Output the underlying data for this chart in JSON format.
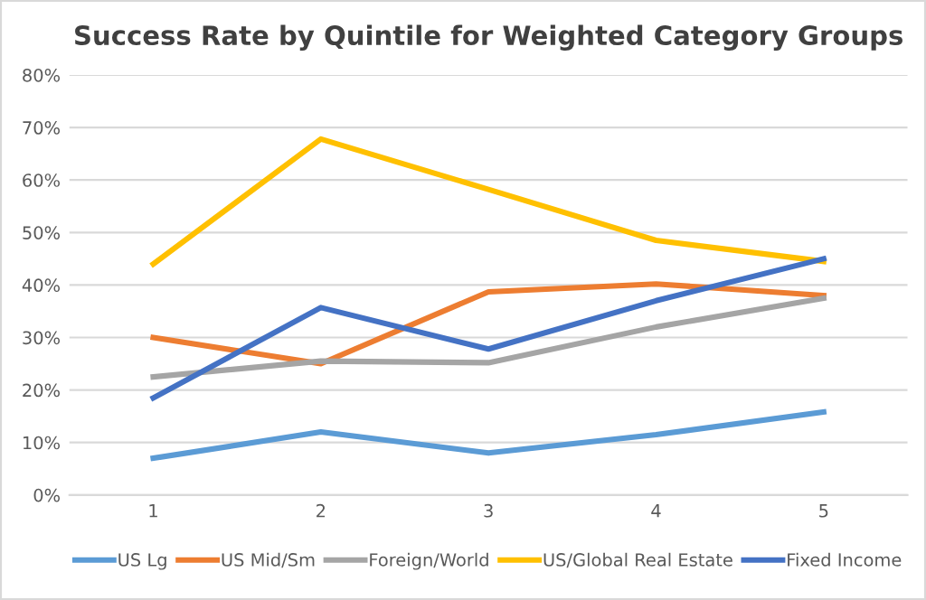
{
  "chart_data": {
    "type": "line",
    "title": "Success Rate by Quintile for Weighted Category Groups",
    "categories": [
      "1",
      "2",
      "3",
      "4",
      "5"
    ],
    "series": [
      {
        "name": "US Lg",
        "color": "#5b9bd5",
        "values": [
          7,
          12,
          8,
          11.5,
          15.8
        ]
      },
      {
        "name": "US Mid/Sm",
        "color": "#ed7d31",
        "values": [
          30,
          25,
          38.7,
          40.2,
          38
        ]
      },
      {
        "name": "Foreign/World",
        "color": "#a5a5a5",
        "values": [
          22.5,
          25.5,
          25.2,
          32,
          37.5
        ]
      },
      {
        "name": "US/Global Real Estate",
        "color": "#ffc000",
        "values": [
          44,
          67.8,
          58.2,
          48.5,
          44.5
        ]
      },
      {
        "name": "Fixed Income",
        "color": "#4472c4",
        "values": [
          18.5,
          35.7,
          27.8,
          37,
          45
        ]
      }
    ],
    "ylim": [
      0,
      80
    ],
    "yticks": [
      {
        "value": 0,
        "label": "0%"
      },
      {
        "value": 10,
        "label": "10%"
      },
      {
        "value": 20,
        "label": "20%"
      },
      {
        "value": 30,
        "label": "30%"
      },
      {
        "value": 40,
        "label": "40%"
      },
      {
        "value": 50,
        "label": "50%"
      },
      {
        "value": 60,
        "label": "60%"
      },
      {
        "value": 70,
        "label": "70%"
      },
      {
        "value": 80,
        "label": "80%"
      }
    ],
    "grid": "y",
    "legend": "bottom",
    "marker": "none",
    "line_style": "solid"
  }
}
